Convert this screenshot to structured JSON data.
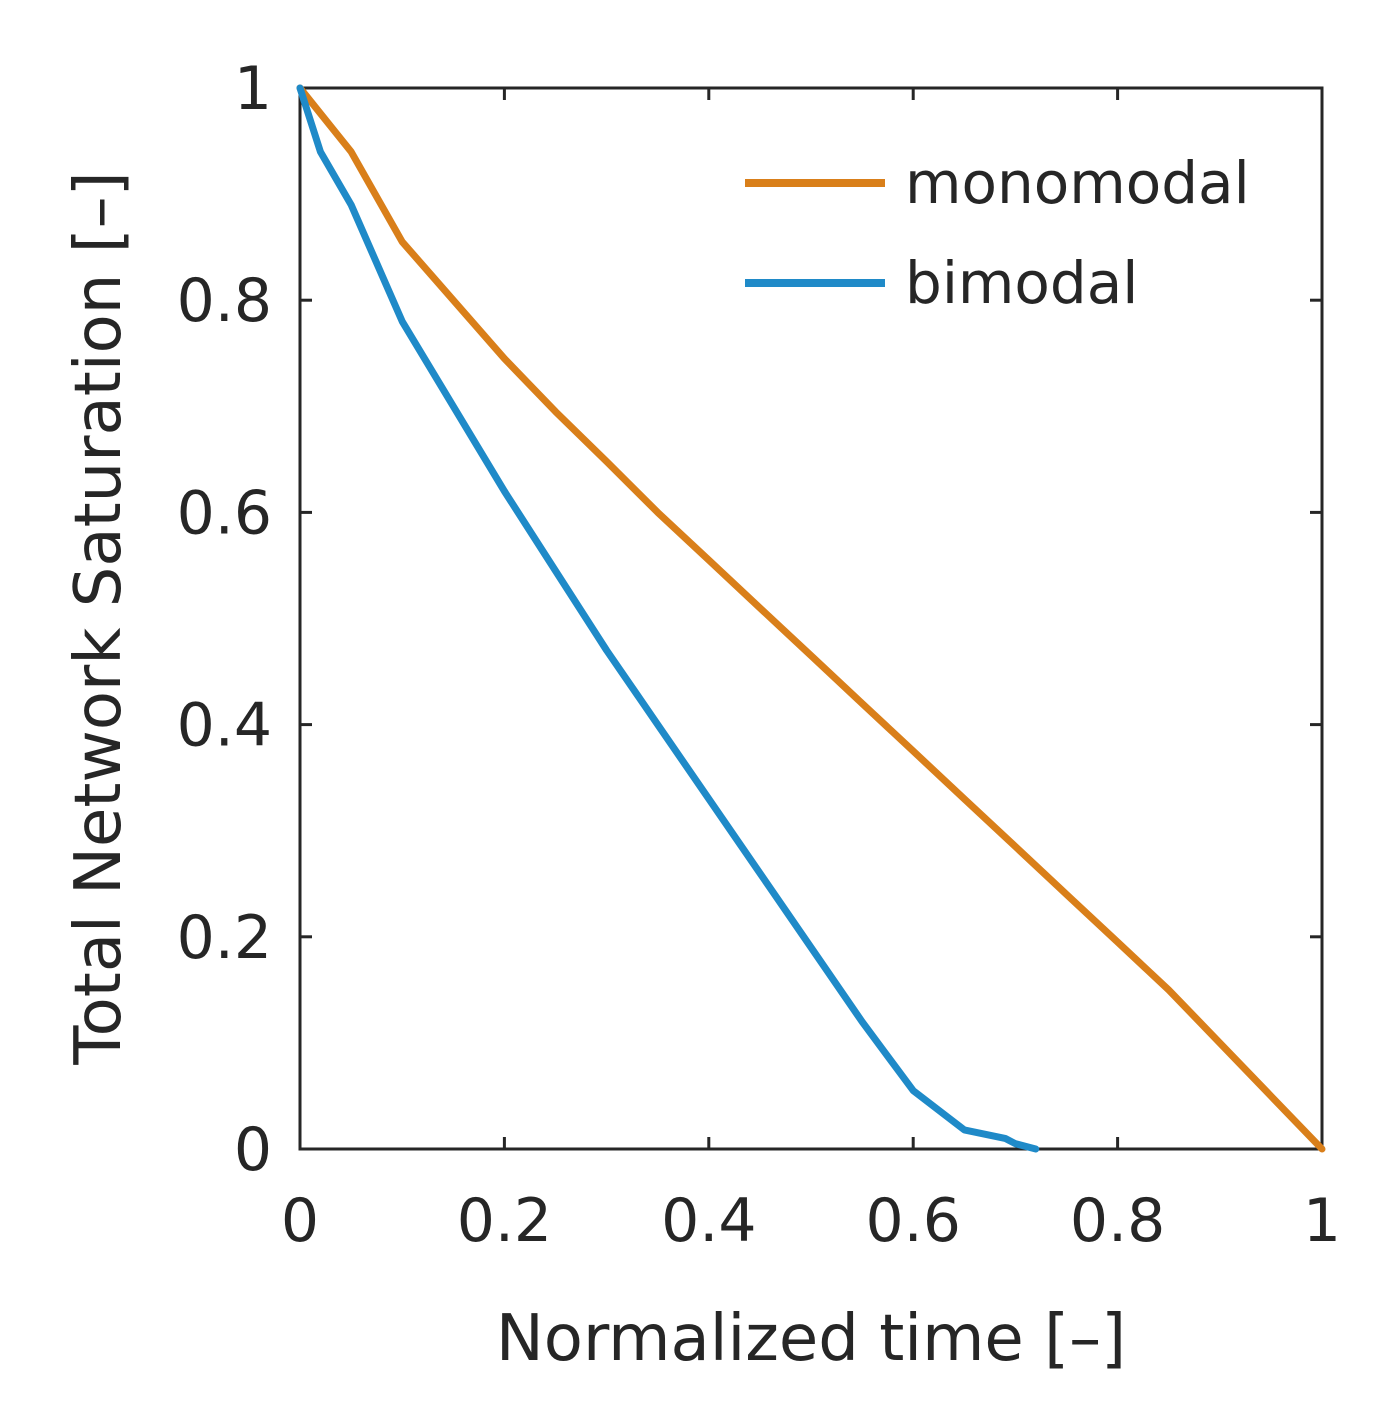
{
  "chart_data": {
    "type": "line",
    "xlabel": "Normalized time [–]",
    "ylabel": "Total Network Saturation [–]",
    "xlim": [
      0,
      1
    ],
    "ylim": [
      0,
      1
    ],
    "xticks": [
      "0",
      "0.2",
      "0.4",
      "0.6",
      "0.8",
      "1"
    ],
    "yticks": [
      "0",
      "0.2",
      "0.4",
      "0.6",
      "0.8",
      "1"
    ],
    "grid": false,
    "legend_position": "top-right",
    "series": [
      {
        "name": "monomodal",
        "color": "#D97F1A",
        "x": [
          0,
          0.05,
          0.1,
          0.15,
          0.2,
          0.25,
          0.3,
          0.35,
          0.4,
          0.45,
          0.5,
          0.55,
          0.6,
          0.65,
          0.7,
          0.75,
          0.8,
          0.85,
          0.9,
          0.95,
          1.0
        ],
        "y": [
          1.0,
          0.94,
          0.855,
          0.8,
          0.745,
          0.695,
          0.648,
          0.6,
          0.555,
          0.51,
          0.465,
          0.42,
          0.375,
          0.33,
          0.285,
          0.24,
          0.195,
          0.15,
          0.1,
          0.05,
          0.0
        ]
      },
      {
        "name": "bimodal",
        "color": "#1F8AC8",
        "x": [
          0,
          0.02,
          0.05,
          0.1,
          0.15,
          0.2,
          0.25,
          0.3,
          0.35,
          0.4,
          0.45,
          0.5,
          0.55,
          0.6,
          0.65,
          0.69,
          0.7,
          0.72
        ],
        "y": [
          1.0,
          0.94,
          0.89,
          0.78,
          0.7,
          0.62,
          0.545,
          0.47,
          0.4,
          0.33,
          0.26,
          0.19,
          0.12,
          0.055,
          0.018,
          0.01,
          0.005,
          0.0
        ]
      }
    ]
  }
}
